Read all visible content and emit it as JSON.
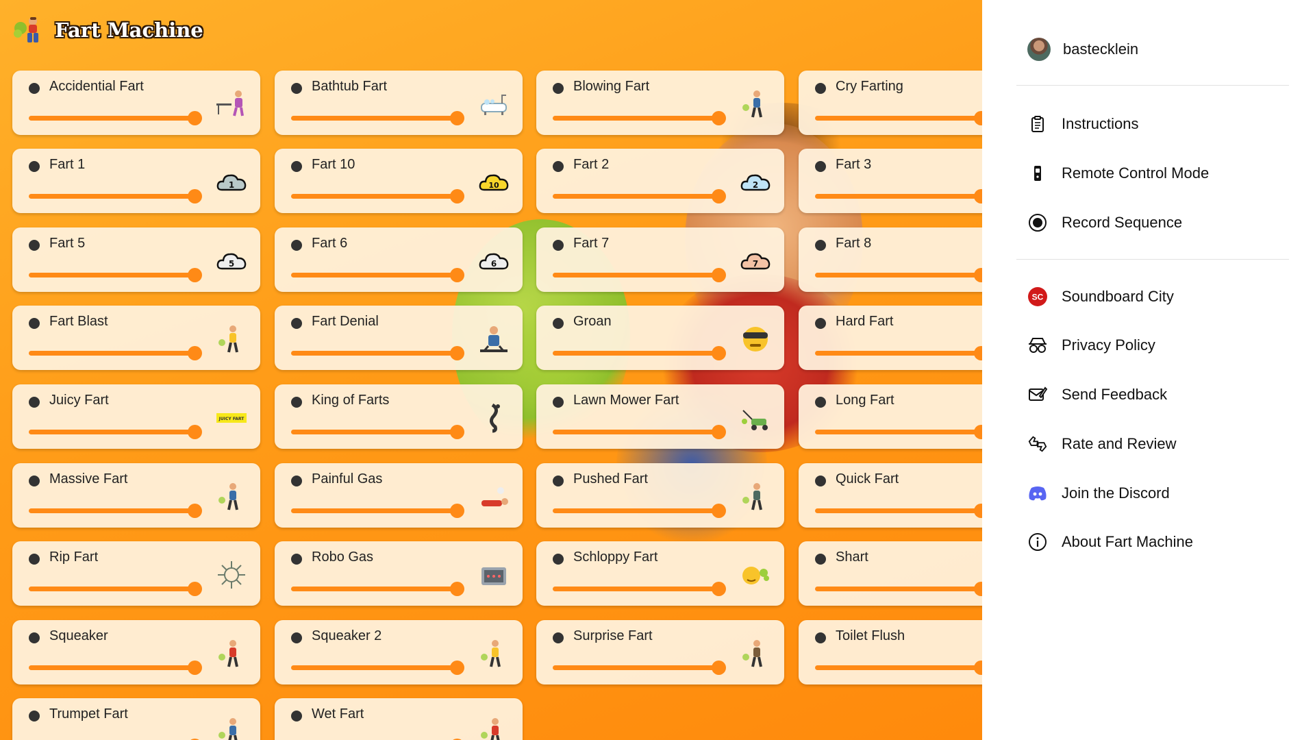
{
  "app": {
    "title": "Fart Machine",
    "logo_icon": "farting-character-icon"
  },
  "sounds": [
    {
      "label": "Accidential Fart",
      "icon": "office-desk-fart-icon"
    },
    {
      "label": "Bathtub Fart",
      "icon": "bathtub-icon"
    },
    {
      "label": "Blowing Fart",
      "icon": "blowing-person-icon"
    },
    {
      "label": "Cry Farting",
      "icon": ""
    },
    {
      "label": "Fart 1",
      "icon": "cloud-1-icon",
      "badge": "1"
    },
    {
      "label": "Fart 10",
      "icon": "cloud-10-icon",
      "badge": "10"
    },
    {
      "label": "Fart 2",
      "icon": "cloud-2-icon",
      "badge": "2"
    },
    {
      "label": "Fart 3",
      "icon": ""
    },
    {
      "label": "Fart 5",
      "icon": "cloud-5-icon",
      "badge": "5"
    },
    {
      "label": "Fart 6",
      "icon": "cloud-6-icon",
      "badge": "6"
    },
    {
      "label": "Fart 7",
      "icon": "cloud-7-icon",
      "badge": "7"
    },
    {
      "label": "Fart 8",
      "icon": ""
    },
    {
      "label": "Fart Blast",
      "icon": "blast-person-icon"
    },
    {
      "label": "Fart Denial",
      "icon": "denial-man-icon"
    },
    {
      "label": "Groan",
      "icon": "groan-face-icon"
    },
    {
      "label": "Hard Fart",
      "icon": ""
    },
    {
      "label": "Juicy Fart",
      "icon": "juicy-fart-sign-icon",
      "badge": "JUICY FART"
    },
    {
      "label": "King of Farts",
      "icon": "king-figure-icon"
    },
    {
      "label": "Lawn Mower Fart",
      "icon": "lawn-mower-icon"
    },
    {
      "label": "Long Fart",
      "icon": ""
    },
    {
      "label": "Massive Fart",
      "icon": "massive-cloud-person-icon"
    },
    {
      "label": "Painful Gas",
      "icon": "lying-person-icon"
    },
    {
      "label": "Pushed Fart",
      "icon": "pushed-person-icon"
    },
    {
      "label": "Quick Fart",
      "icon": ""
    },
    {
      "label": "Rip Fart",
      "icon": "rip-burst-icon"
    },
    {
      "label": "Robo Gas",
      "icon": "robot-icon"
    },
    {
      "label": "Schloppy Fart",
      "icon": "schloppy-face-icon"
    },
    {
      "label": "Shart",
      "icon": ""
    },
    {
      "label": "Squeaker",
      "icon": "squeaker-person-icon"
    },
    {
      "label": "Squeaker 2",
      "icon": "squeaker-2-person-icon"
    },
    {
      "label": "Surprise Fart",
      "icon": "surprise-person-icon"
    },
    {
      "label": "Toilet Flush",
      "icon": ""
    },
    {
      "label": "Trumpet Fart",
      "icon": "trumpet-person-icon"
    },
    {
      "label": "Wet Fart",
      "icon": "wet-person-icon"
    }
  ],
  "sidebar": {
    "username": "bastecklein",
    "menu_top": [
      {
        "label": "Instructions",
        "icon": "clipboard-icon"
      },
      {
        "label": "Remote Control Mode",
        "icon": "remote-icon"
      },
      {
        "label": "Record Sequence",
        "icon": "record-icon"
      }
    ],
    "menu_bottom": [
      {
        "label": "Soundboard City",
        "icon": "soundboard-city-icon",
        "badge": "SC"
      },
      {
        "label": "Privacy Policy",
        "icon": "spy-glasses-icon"
      },
      {
        "label": "Send Feedback",
        "icon": "feedback-icon"
      },
      {
        "label": "Rate and Review",
        "icon": "rate-review-icon"
      },
      {
        "label": "Join the Discord",
        "icon": "discord-icon"
      },
      {
        "label": "About Fart Machine",
        "icon": "info-icon"
      }
    ]
  },
  "colors": {
    "accent": "#ff8a16",
    "card_bg": "#fff1dc",
    "sc_red": "#d11a1a",
    "discord": "#5865f2"
  }
}
